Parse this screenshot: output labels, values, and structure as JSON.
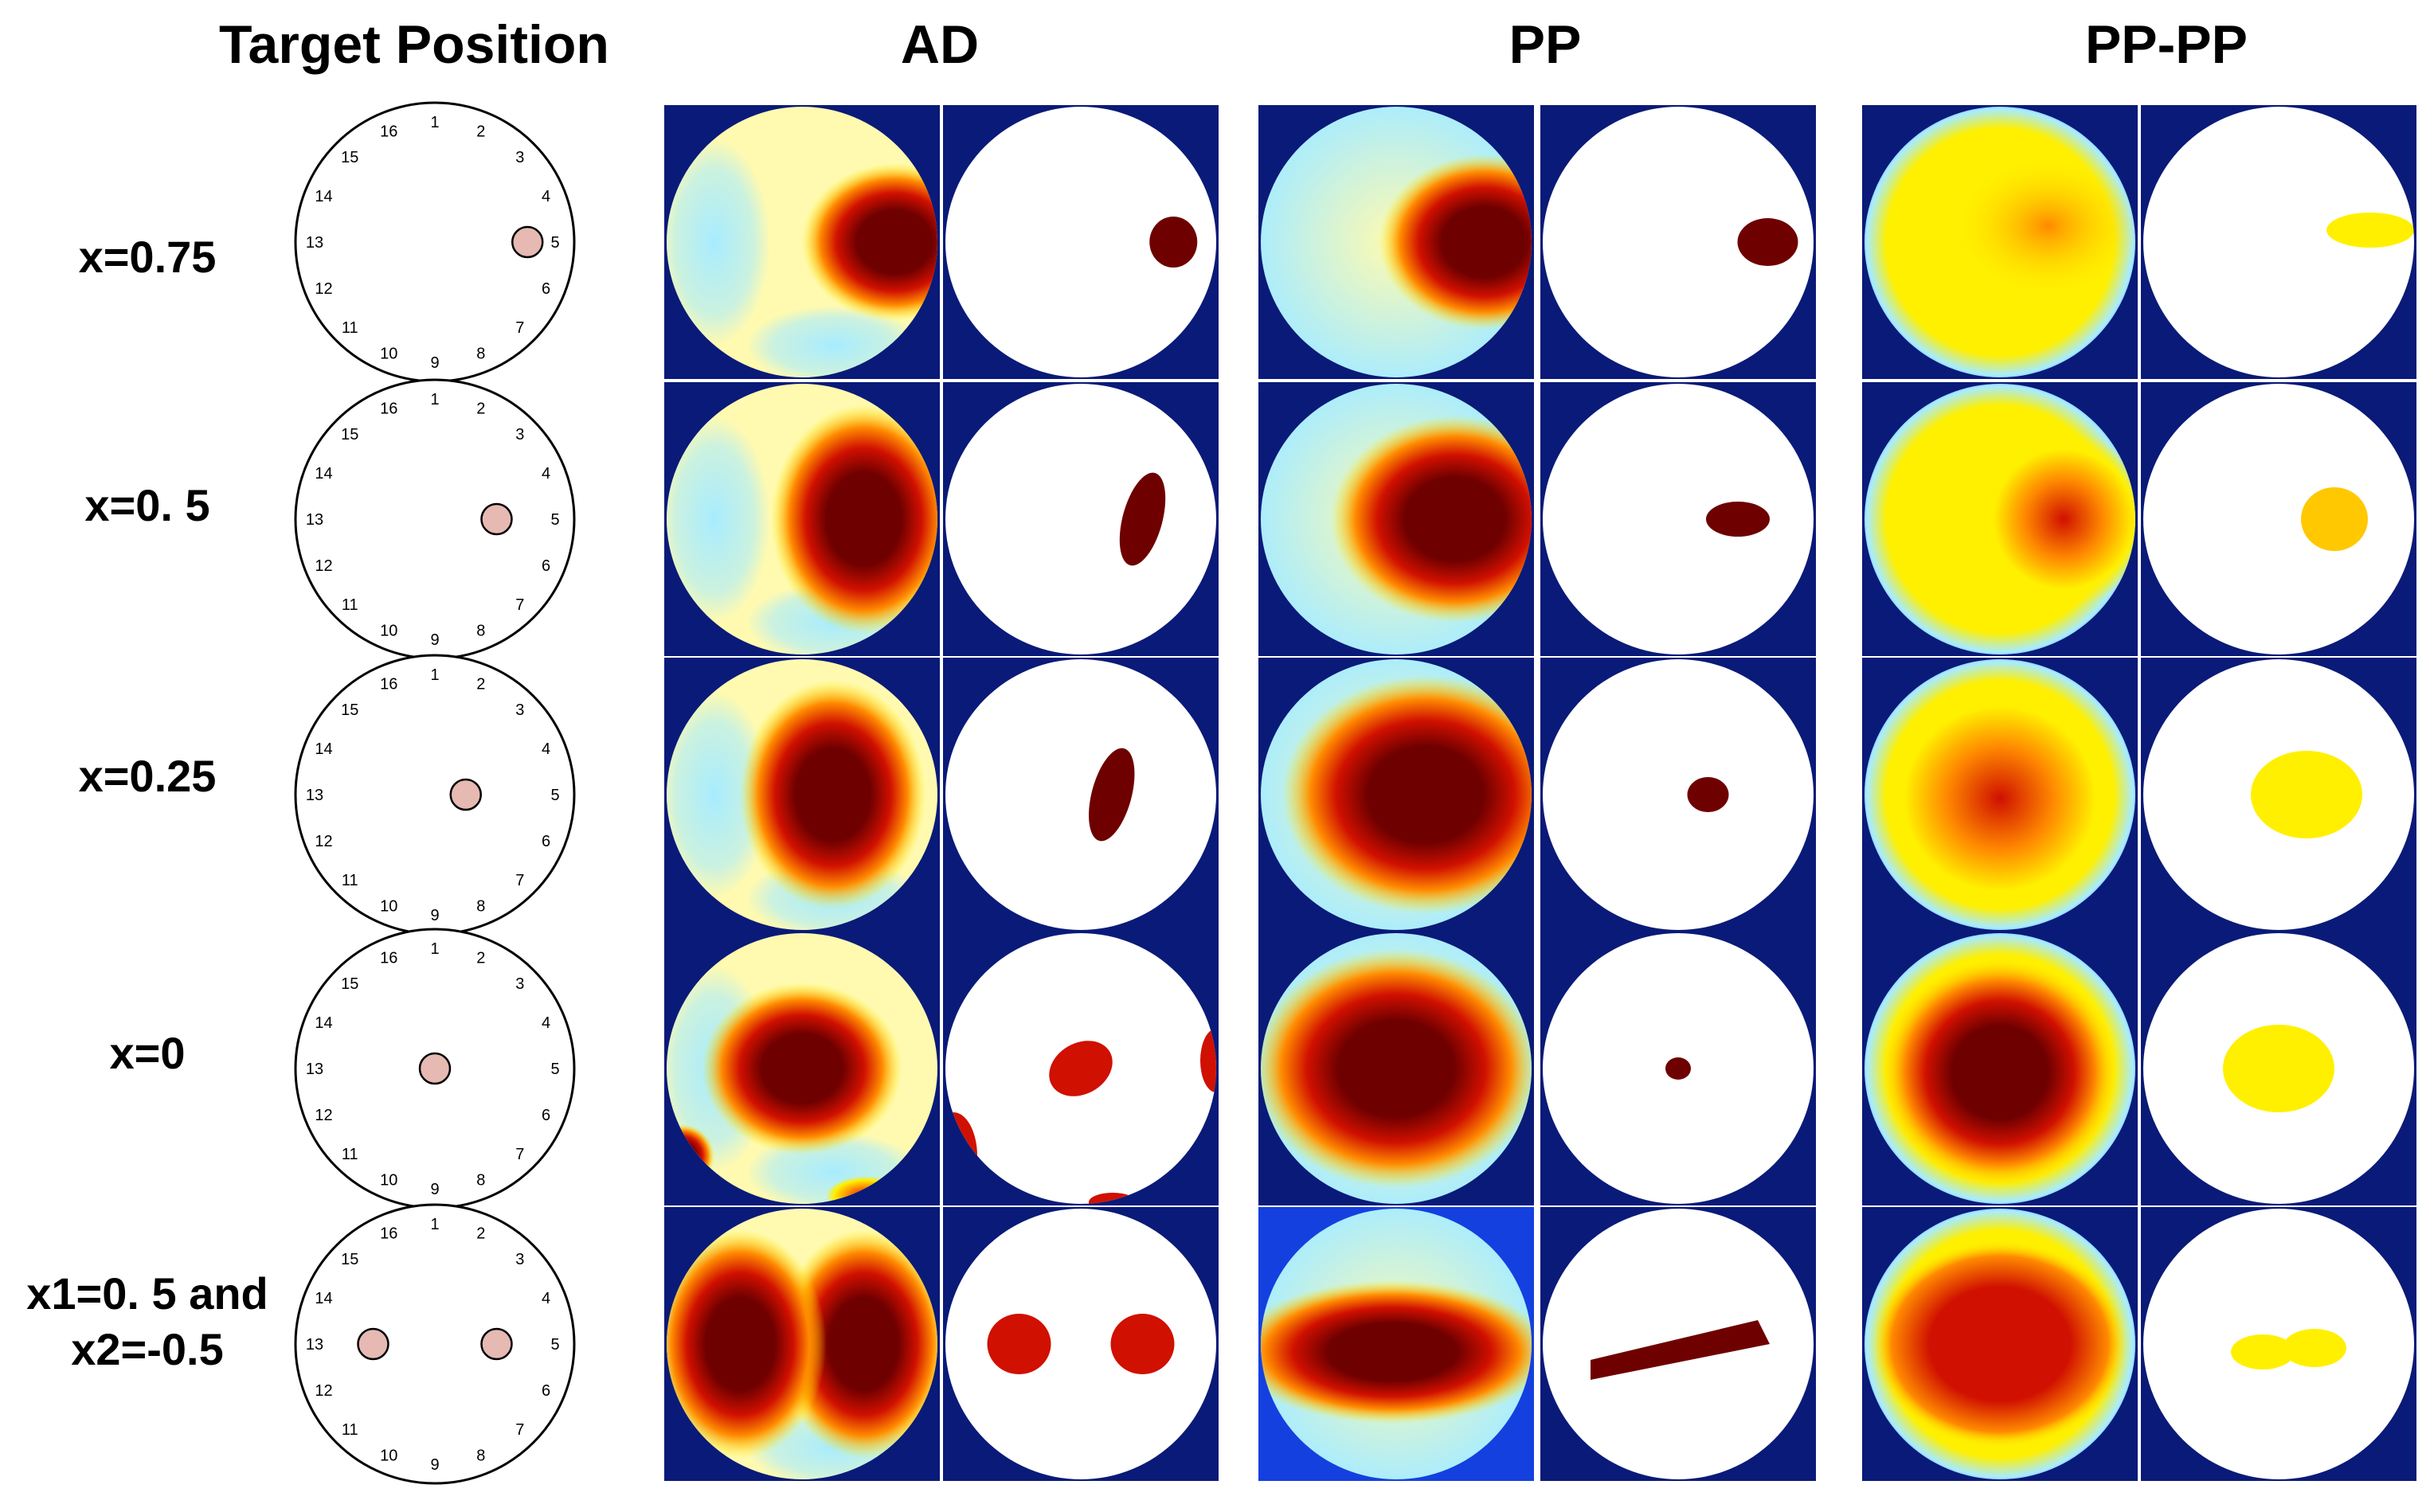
{
  "headers": {
    "target": "Target Position",
    "ad": "AD",
    "pp": "PP",
    "pppp": "PP-PP"
  },
  "electrode_labels": [
    "1",
    "2",
    "3",
    "4",
    "5",
    "6",
    "7",
    "8",
    "9",
    "10",
    "11",
    "12",
    "13",
    "14",
    "15",
    "16"
  ],
  "rows": [
    {
      "label_lines": [
        "x=0.75"
      ],
      "targets": [
        [
          0.75,
          0
        ]
      ]
    },
    {
      "label_lines": [
        "x=0. 5"
      ],
      "targets": [
        [
          0.5,
          0
        ]
      ]
    },
    {
      "label_lines": [
        "x=0.25"
      ],
      "targets": [
        [
          0.25,
          0
        ]
      ]
    },
    {
      "label_lines": [
        "x=0"
      ],
      "targets": [
        [
          0,
          0
        ]
      ]
    },
    {
      "label_lines": [
        "x1=0. 5 and",
        "x2=-0.5"
      ],
      "targets": [
        [
          0.5,
          0
        ],
        [
          -0.5,
          0
        ]
      ]
    }
  ],
  "colors": {
    "frame_bg": "#0a1a78",
    "pp_last_bg": "#1440e0",
    "target_fill": "#e6b9b3",
    "dark_red": "#6e0000",
    "red": "#d01000",
    "orange": "#ff8a00",
    "yellow": "#fff000",
    "pale_yellow": "#fffab0",
    "cyan": "#a8ecff",
    "blue": "#3050ff"
  }
}
